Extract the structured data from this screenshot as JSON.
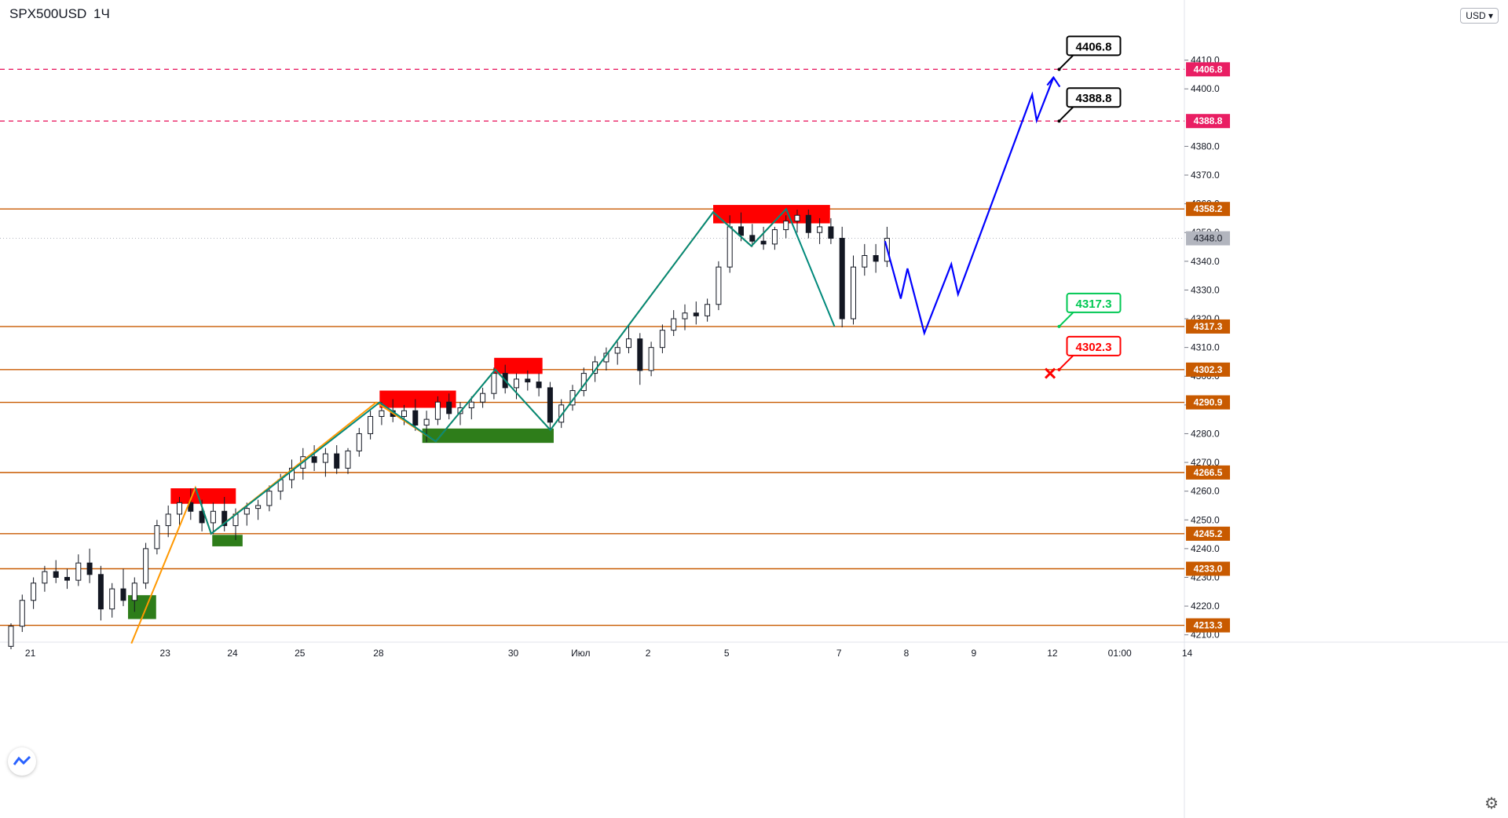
{
  "symbol": "SPX500USD",
  "timeframe": "1Ч",
  "currency": "USD",
  "colors": {
    "up": "#26a69a",
    "down": "#131722",
    "orange_line": "#c85a00",
    "pink_line": "#e91e63",
    "resistance_box": "#ff0000",
    "support_box": "#2e7d1a",
    "wave_orange": "#ff9800",
    "wave_teal": "#00897b",
    "forecast": "#0000ff",
    "target_green": "#00c853",
    "target_red": "#ff0000"
  },
  "chart_data": {
    "type": "candlestick",
    "y_range": [
      4208,
      4420
    ],
    "y_ticks": [
      4210.0,
      4220.0,
      4230.0,
      4240.0,
      4250.0,
      4260.0,
      4270.0,
      4280.0,
      4290.0,
      4300.0,
      4310.0,
      4320.0,
      4330.0,
      4340.0,
      4350.0,
      4360.0,
      4370.0,
      4380.0,
      4400.0,
      4410.0
    ],
    "x_ticks": [
      {
        "label": "21",
        "idx": 2
      },
      {
        "label": "23",
        "idx": 14
      },
      {
        "label": "24",
        "idx": 20
      },
      {
        "label": "25",
        "idx": 26
      },
      {
        "label": "28",
        "idx": 33
      },
      {
        "label": "30",
        "idx": 45
      },
      {
        "label": "Июл",
        "idx": 51
      },
      {
        "label": "2",
        "idx": 57
      },
      {
        "label": "5",
        "idx": 64
      },
      {
        "label": "7",
        "idx": 74
      },
      {
        "label": "8",
        "idx": 80
      },
      {
        "label": "9",
        "idx": 86
      },
      {
        "label": "12",
        "idx": 93
      },
      {
        "label": "01:00",
        "idx": 99
      },
      {
        "label": "14",
        "idx": 105
      }
    ],
    "horizontal_levels": [
      {
        "price": 4406.8,
        "label": "4406.8",
        "style": "dashed",
        "color": "#e91e63"
      },
      {
        "price": 4388.8,
        "label": "4388.8",
        "style": "dashed",
        "color": "#e91e63"
      },
      {
        "price": 4358.2,
        "label": "4358.2",
        "style": "solid",
        "color": "#c85a00"
      },
      {
        "price": 4317.3,
        "label": "4317.3",
        "style": "solid",
        "color": "#c85a00"
      },
      {
        "price": 4302.3,
        "label": "4302.3",
        "style": "solid",
        "color": "#c85a00"
      },
      {
        "price": 4290.9,
        "label": "4290.9",
        "style": "solid",
        "color": "#c85a00"
      },
      {
        "price": 4266.5,
        "label": "4266.5",
        "style": "solid",
        "color": "#c85a00"
      },
      {
        "price": 4245.2,
        "label": "4245.2",
        "style": "solid",
        "color": "#c85a00"
      },
      {
        "price": 4233.0,
        "label": "4233.0",
        "style": "solid",
        "color": "#c85a00"
      },
      {
        "price": 4213.3,
        "label": "4213.3",
        "style": "solid",
        "color": "#c85a00"
      }
    ],
    "current_price": {
      "price": 4348.0,
      "label": "4348.0"
    },
    "resistance_zones": [
      {
        "x0": 14.5,
        "x1": 20.3,
        "y0": 4255.6,
        "y1": 4261
      },
      {
        "x0": 33.1,
        "x1": 39.9,
        "y0": 4289,
        "y1": 4295
      },
      {
        "x0": 43.3,
        "x1": 47.6,
        "y0": 4300.8,
        "y1": 4306.4
      },
      {
        "x0": 62.8,
        "x1": 73.2,
        "y0": 4353.2,
        "y1": 4359.6
      }
    ],
    "support_zones": [
      {
        "x0": 10.7,
        "x1": 13.2,
        "y0": 4215.5,
        "y1": 4223.8
      },
      {
        "x0": 18.2,
        "x1": 20.9,
        "y0": 4240.8,
        "y1": 4244.8
      },
      {
        "x0": 36.9,
        "x1": 48.6,
        "y0": 4276.8,
        "y1": 4281.8
      }
    ],
    "wave_orange": [
      [
        11,
        4207
      ],
      [
        16.7,
        4261.2
      ],
      [
        18.1,
        4245.2
      ],
      [
        32.8,
        4290.9
      ],
      [
        38.1,
        4277.3
      ],
      [
        43.4,
        4302.3
      ],
      [
        48.3,
        4281.3
      ],
      [
        62.8,
        4357.1
      ],
      [
        66.2,
        4345.3
      ],
      [
        69.3,
        4358.2
      ]
    ],
    "wave_teal": [
      [
        16.7,
        4261.2
      ],
      [
        18.1,
        4245.2
      ],
      [
        33.1,
        4290.9
      ],
      [
        38.1,
        4277.3
      ],
      [
        43.4,
        4302.3
      ],
      [
        48.3,
        4281.3
      ],
      [
        62.8,
        4357.1
      ],
      [
        66.2,
        4345.3
      ],
      [
        69.3,
        4358.2
      ],
      [
        73.6,
        4317.3
      ]
    ],
    "forecast": [
      [
        78.1,
        4347
      ],
      [
        79.5,
        4327
      ],
      [
        80.1,
        4337.5
      ],
      [
        81.6,
        4315
      ],
      [
        84.0,
        4339
      ],
      [
        84.6,
        4328.5
      ],
      [
        91.2,
        4398
      ],
      [
        91.6,
        4389
      ],
      [
        93.1,
        4404
      ]
    ],
    "targets": [
      {
        "label": "4406.8",
        "price": 4406.8,
        "color": "#000000",
        "x": 93.6
      },
      {
        "label": "4388.8",
        "price": 4388.8,
        "color": "#000000",
        "x": 93.6
      },
      {
        "label": "4317.3",
        "price": 4317.3,
        "color": "#00c853",
        "x": 93.6
      },
      {
        "label": "4302.3",
        "price": 4302.3,
        "color": "#ff0000",
        "x": 93.6
      }
    ],
    "stop_marker": {
      "price": 4301,
      "x": 92.8
    },
    "candles": [
      [
        4206,
        4214,
        4205,
        4213
      ],
      [
        4213,
        4224,
        4211,
        4222
      ],
      [
        4222,
        4230,
        4219,
        4228
      ],
      [
        4228,
        4234,
        4225,
        4232
      ],
      [
        4232,
        4236,
        4228,
        4230
      ],
      [
        4230,
        4233,
        4226,
        4229
      ],
      [
        4229,
        4238,
        4227,
        4235
      ],
      [
        4235,
        4240,
        4228,
        4231
      ],
      [
        4231,
        4234,
        4215,
        4219
      ],
      [
        4219,
        4228,
        4216,
        4226
      ],
      [
        4226,
        4233,
        4220,
        4222
      ],
      [
        4222,
        4230,
        4218,
        4228
      ],
      [
        4228,
        4242,
        4226,
        4240
      ],
      [
        4240,
        4250,
        4238,
        4248
      ],
      [
        4248,
        4255,
        4244,
        4252
      ],
      [
        4252,
        4258,
        4248,
        4256
      ],
      [
        4256,
        4261,
        4250,
        4253
      ],
      [
        4253,
        4257,
        4246,
        4249
      ],
      [
        4249,
        4256,
        4245,
        4253
      ],
      [
        4253,
        4258,
        4246,
        4248
      ],
      [
        4248,
        4254,
        4243,
        4252
      ],
      [
        4252,
        4256,
        4248,
        4254
      ],
      [
        4254,
        4257,
        4250,
        4255
      ],
      [
        4255,
        4262,
        4253,
        4260
      ],
      [
        4260,
        4266,
        4257,
        4264
      ],
      [
        4264,
        4271,
        4261,
        4268
      ],
      [
        4268,
        4275,
        4264,
        4272
      ],
      [
        4272,
        4276,
        4267,
        4270
      ],
      [
        4270,
        4275,
        4265,
        4273
      ],
      [
        4273,
        4276,
        4266,
        4268
      ],
      [
        4268,
        4275,
        4266,
        4274
      ],
      [
        4274,
        4282,
        4272,
        4280
      ],
      [
        4280,
        4288,
        4278,
        4286
      ],
      [
        4286,
        4291,
        4283,
        4288
      ],
      [
        4288,
        4292,
        4284,
        4286
      ],
      [
        4286,
        4290,
        4283,
        4288
      ],
      [
        4288,
        4292,
        4281,
        4283
      ],
      [
        4283,
        4288,
        4277,
        4285
      ],
      [
        4285,
        4293,
        4283,
        4291
      ],
      [
        4291,
        4294,
        4285,
        4287
      ],
      [
        4287,
        4291,
        4283,
        4289
      ],
      [
        4289,
        4293,
        4285,
        4291
      ],
      [
        4291,
        4296,
        4289,
        4294
      ],
      [
        4294,
        4303,
        4292,
        4301
      ],
      [
        4301,
        4304,
        4294,
        4296
      ],
      [
        4296,
        4301,
        4292,
        4299
      ],
      [
        4299,
        4302,
        4295,
        4298
      ],
      [
        4298,
        4301,
        4293,
        4296
      ],
      [
        4296,
        4298,
        4281,
        4284
      ],
      [
        4284,
        4292,
        4282,
        4290
      ],
      [
        4290,
        4297,
        4288,
        4295
      ],
      [
        4295,
        4303,
        4293,
        4301
      ],
      [
        4301,
        4307,
        4298,
        4305
      ],
      [
        4305,
        4310,
        4302,
        4308
      ],
      [
        4308,
        4312,
        4304,
        4310
      ],
      [
        4310,
        4318,
        4308,
        4313
      ],
      [
        4313,
        4315,
        4297,
        4302
      ],
      [
        4302,
        4312,
        4300,
        4310
      ],
      [
        4310,
        4318,
        4308,
        4316
      ],
      [
        4316,
        4323,
        4314,
        4320
      ],
      [
        4320,
        4325,
        4316,
        4322
      ],
      [
        4322,
        4326,
        4318,
        4321
      ],
      [
        4321,
        4327,
        4319,
        4325
      ],
      [
        4325,
        4340,
        4323,
        4338
      ],
      [
        4338,
        4356,
        4336,
        4352
      ],
      [
        4352,
        4357,
        4347,
        4349
      ],
      [
        4349,
        4353,
        4345,
        4347
      ],
      [
        4347,
        4352,
        4344,
        4346
      ],
      [
        4346,
        4352,
        4344,
        4351
      ],
      [
        4351,
        4356,
        4348,
        4354
      ],
      [
        4354,
        4358,
        4350,
        4356
      ],
      [
        4356,
        4358,
        4348,
        4350
      ],
      [
        4350,
        4355,
        4346,
        4352
      ],
      [
        4352,
        4355,
        4346,
        4348
      ],
      [
        4348,
        4352,
        4317,
        4320
      ],
      [
        4320,
        4342,
        4318,
        4338
      ],
      [
        4338,
        4346,
        4335,
        4342
      ],
      [
        4342,
        4346,
        4336,
        4340
      ],
      [
        4340,
        4352,
        4338,
        4348
      ]
    ]
  }
}
